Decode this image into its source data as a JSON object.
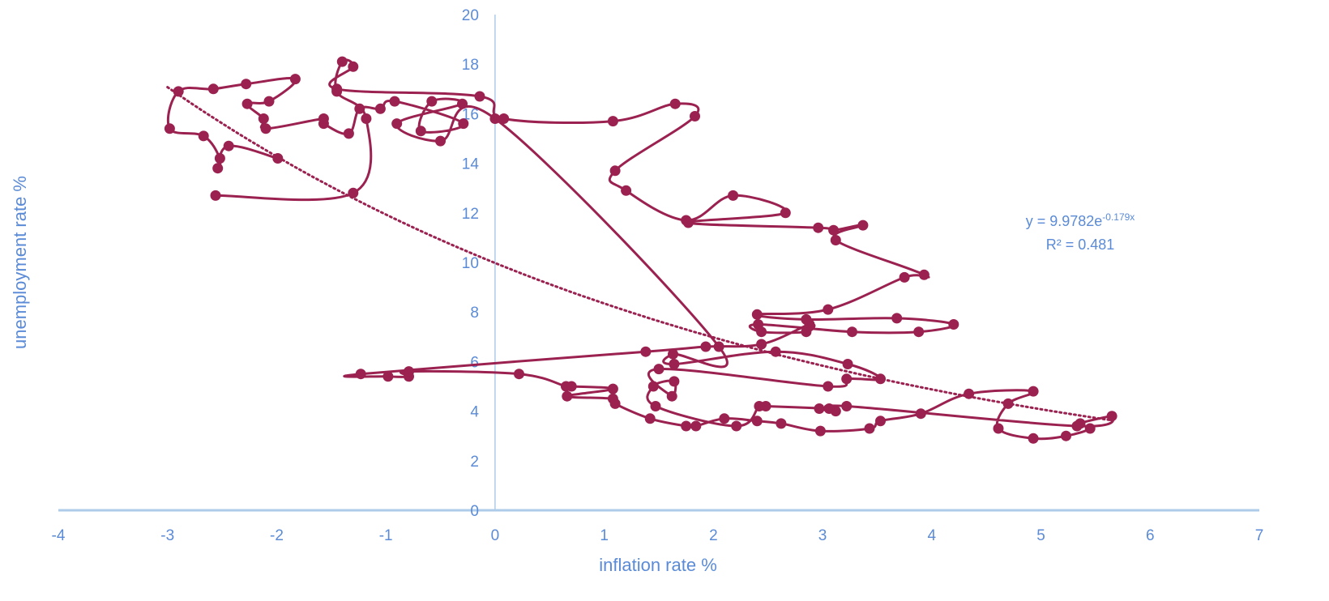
{
  "chart_data": {
    "type": "scatter",
    "title": "",
    "xlabel": "inflation rate %",
    "ylabel": "unemployment rate %",
    "xlim": [
      -4,
      7
    ],
    "ylim": [
      0,
      20
    ],
    "xticks": [
      "-4",
      "-3",
      "-2",
      "-1",
      "0",
      "1",
      "2",
      "3",
      "4",
      "5",
      "6",
      "7"
    ],
    "yticks": [
      "0",
      "2",
      "4",
      "6",
      "8",
      "10",
      "12",
      "14",
      "16",
      "18",
      "20"
    ],
    "grid": false,
    "legend": "none",
    "series_color": "#9b2150",
    "axis_color": "#aecbea",
    "text_color": "#5b8bd6",
    "trendline": {
      "type": "exponential",
      "a": 9.9782,
      "b": -0.179,
      "x_range": [
        -3.0,
        5.65
      ],
      "style": "dotted",
      "equation_base": "y = 9.9782e",
      "equation_exponent": "-0.179x",
      "r2_label": "R² = 0.481"
    },
    "points": [
      {
        "x": -2.56,
        "y": 12.7
      },
      {
        "x": -1.3,
        "y": 12.8
      },
      {
        "x": -1.18,
        "y": 15.8
      },
      {
        "x": -1.45,
        "y": 16.9
      },
      {
        "x": -1.4,
        "y": 18.1
      },
      {
        "x": -1.3,
        "y": 17.9
      },
      {
        "x": -1.45,
        "y": 17.0
      },
      {
        "x": -0.14,
        "y": 16.7
      },
      {
        "x": 0.08,
        "y": 15.8
      },
      {
        "x": 1.08,
        "y": 15.7
      },
      {
        "x": 1.65,
        "y": 16.4
      },
      {
        "x": 1.83,
        "y": 15.9
      },
      {
        "x": 1.1,
        "y": 13.7
      },
      {
        "x": 1.2,
        "y": 12.9
      },
      {
        "x": 1.75,
        "y": 11.7
      },
      {
        "x": 2.18,
        "y": 12.7
      },
      {
        "x": 2.66,
        "y": 12.0
      },
      {
        "x": 1.77,
        "y": 11.6
      },
      {
        "x": 2.96,
        "y": 11.4
      },
      {
        "x": 3.1,
        "y": 11.3
      },
      {
        "x": 3.37,
        "y": 11.5
      },
      {
        "x": 3.12,
        "y": 10.9
      },
      {
        "x": 3.93,
        "y": 9.5
      },
      {
        "x": 3.75,
        "y": 9.4
      },
      {
        "x": 3.05,
        "y": 8.1
      },
      {
        "x": 2.4,
        "y": 7.9
      },
      {
        "x": 2.85,
        "y": 7.7
      },
      {
        "x": 3.68,
        "y": 7.75
      },
      {
        "x": 4.2,
        "y": 7.5
      },
      {
        "x": 3.88,
        "y": 7.2
      },
      {
        "x": 3.27,
        "y": 7.2
      },
      {
        "x": 2.41,
        "y": 7.5
      },
      {
        "x": 2.44,
        "y": 7.2
      },
      {
        "x": 2.85,
        "y": 7.2
      },
      {
        "x": 2.88,
        "y": 7.5
      },
      {
        "x": 2.44,
        "y": 6.7
      },
      {
        "x": 1.93,
        "y": 6.6
      },
      {
        "x": 1.38,
        "y": 6.4
      },
      {
        "x": -1.23,
        "y": 5.5
      },
      {
        "x": -0.98,
        "y": 5.4
      },
      {
        "x": -0.79,
        "y": 5.4
      },
      {
        "x": -0.79,
        "y": 5.6
      },
      {
        "x": 0.22,
        "y": 5.5
      },
      {
        "x": 0.65,
        "y": 5.0
      },
      {
        "x": 0.7,
        "y": 5.0
      },
      {
        "x": 1.08,
        "y": 4.9
      },
      {
        "x": 0.66,
        "y": 4.6
      },
      {
        "x": 1.08,
        "y": 4.5
      },
      {
        "x": 1.1,
        "y": 4.3
      },
      {
        "x": 1.42,
        "y": 3.7
      },
      {
        "x": 1.75,
        "y": 3.4
      },
      {
        "x": 1.84,
        "y": 3.4
      },
      {
        "x": 2.1,
        "y": 3.7
      },
      {
        "x": 2.4,
        "y": 3.6
      },
      {
        "x": 2.62,
        "y": 3.5
      },
      {
        "x": 2.98,
        "y": 3.2
      },
      {
        "x": 3.43,
        "y": 3.3
      },
      {
        "x": 3.53,
        "y": 3.6
      },
      {
        "x": 3.9,
        "y": 3.9
      },
      {
        "x": 4.34,
        "y": 4.7
      },
      {
        "x": 4.93,
        "y": 4.8
      },
      {
        "x": 4.7,
        "y": 4.3
      },
      {
        "x": 4.61,
        "y": 3.3
      },
      {
        "x": 4.93,
        "y": 2.9
      },
      {
        "x": 5.23,
        "y": 3.0
      },
      {
        "x": 5.45,
        "y": 3.3
      },
      {
        "x": 5.36,
        "y": 3.5
      },
      {
        "x": 5.65,
        "y": 3.8
      },
      {
        "x": 5.33,
        "y": 3.4
      },
      {
        "x": 3.22,
        "y": 4.2
      },
      {
        "x": 3.12,
        "y": 4.0
      },
      {
        "x": 2.97,
        "y": 4.1
      },
      {
        "x": 3.06,
        "y": 4.1
      },
      {
        "x": 2.48,
        "y": 4.2
      },
      {
        "x": 2.42,
        "y": 4.2
      },
      {
        "x": 2.21,
        "y": 3.4
      },
      {
        "x": 1.47,
        "y": 4.2
      },
      {
        "x": 1.45,
        "y": 5.0
      },
      {
        "x": 1.64,
        "y": 5.2
      },
      {
        "x": 1.62,
        "y": 4.6
      },
      {
        "x": 1.5,
        "y": 5.7
      },
      {
        "x": 3.05,
        "y": 5.0
      },
      {
        "x": 3.22,
        "y": 5.3
      },
      {
        "x": 3.53,
        "y": 5.3
      },
      {
        "x": 3.23,
        "y": 5.9
      },
      {
        "x": 2.57,
        "y": 6.4
      },
      {
        "x": 1.64,
        "y": 5.9
      },
      {
        "x": 1.63,
        "y": 6.3
      },
      {
        "x": 2.05,
        "y": 6.6
      },
      {
        "x": 0.0,
        "y": 15.8
      },
      {
        "x": -0.5,
        "y": 14.9
      },
      {
        "x": -0.9,
        "y": 15.6
      },
      {
        "x": -0.3,
        "y": 16.4
      },
      {
        "x": -0.58,
        "y": 16.5
      },
      {
        "x": -0.68,
        "y": 15.3
      },
      {
        "x": -0.29,
        "y": 15.6
      },
      {
        "x": -0.92,
        "y": 16.5
      },
      {
        "x": -1.05,
        "y": 16.2
      },
      {
        "x": -1.24,
        "y": 16.2
      },
      {
        "x": -1.34,
        "y": 15.2
      },
      {
        "x": -1.57,
        "y": 15.6
      },
      {
        "x": -1.57,
        "y": 15.8
      },
      {
        "x": -2.1,
        "y": 15.4
      },
      {
        "x": -2.12,
        "y": 15.8
      },
      {
        "x": -2.27,
        "y": 16.4
      },
      {
        "x": -2.07,
        "y": 16.5
      },
      {
        "x": -1.83,
        "y": 17.4
      },
      {
        "x": -2.28,
        "y": 17.2
      },
      {
        "x": -2.58,
        "y": 17.0
      },
      {
        "x": -2.9,
        "y": 16.9
      },
      {
        "x": -2.98,
        "y": 15.4
      },
      {
        "x": -2.67,
        "y": 15.1
      },
      {
        "x": -2.52,
        "y": 14.2
      },
      {
        "x": -2.54,
        "y": 13.8
      },
      {
        "x": -2.44,
        "y": 14.7
      },
      {
        "x": -1.99,
        "y": 14.2
      }
    ]
  }
}
